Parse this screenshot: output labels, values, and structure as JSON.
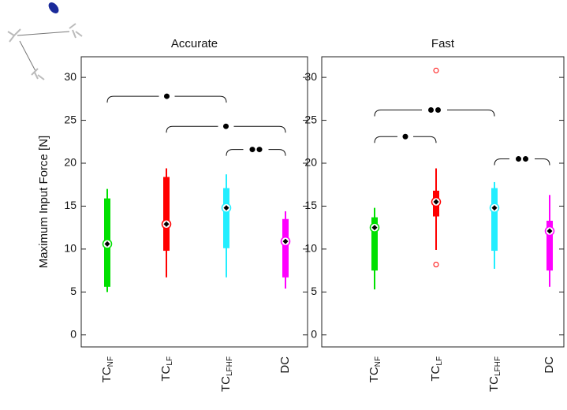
{
  "chart_data": [
    {
      "type": "box",
      "title": "Accurate",
      "ylabel": "Maximum Input Force [N]",
      "categories": [
        {
          "text": "TC",
          "sub": "NF"
        },
        {
          "text": "TC",
          "sub": "LF"
        },
        {
          "text": "TC",
          "sub": "LFHF"
        },
        {
          "text": "DC"
        }
      ],
      "boxes": [
        {
          "color": "#00e000",
          "whisker_low": 5.0,
          "q1": 5.6,
          "median": 10.6,
          "q3": 15.9,
          "whisker_high": 17.0,
          "outliers": []
        },
        {
          "color": "#ff0000",
          "whisker_low": 6.7,
          "q1": 9.8,
          "median": 12.9,
          "q3": 18.4,
          "whisker_high": 19.4,
          "outliers": []
        },
        {
          "color": "#22eeff",
          "whisker_low": 6.7,
          "q1": 10.1,
          "median": 14.8,
          "q3": 17.1,
          "whisker_high": 18.7,
          "outliers": []
        },
        {
          "color": "#ff00ff",
          "whisker_low": 5.4,
          "q1": 6.7,
          "median": 10.9,
          "q3": 13.5,
          "whisker_high": 14.4,
          "outliers": []
        }
      ],
      "brackets": [
        {
          "from": 0,
          "to": 2,
          "y": 27.8,
          "level": 1
        },
        {
          "from": 1,
          "to": 3,
          "y": 24.3,
          "level": 1
        },
        {
          "from": 2,
          "to": 3,
          "y": 21.6,
          "level": 2
        }
      ],
      "ylim": [
        -1.4,
        32.4
      ],
      "yticks": [
        0,
        5,
        10,
        15,
        20,
        25,
        30
      ]
    },
    {
      "type": "box",
      "title": "Fast",
      "categories": [
        {
          "text": "TC",
          "sub": "NF"
        },
        {
          "text": "TC",
          "sub": "LF"
        },
        {
          "text": "TC",
          "sub": "LFHF"
        },
        {
          "text": "DC"
        }
      ],
      "boxes": [
        {
          "color": "#00e000",
          "whisker_low": 5.3,
          "q1": 7.5,
          "median": 12.5,
          "q3": 13.7,
          "whisker_high": 14.8,
          "outliers": []
        },
        {
          "color": "#ff0000",
          "whisker_low": 9.9,
          "q1": 13.8,
          "median": 15.5,
          "q3": 16.8,
          "whisker_high": 19.4,
          "outliers": [
            30.8,
            8.2
          ]
        },
        {
          "color": "#22eeff",
          "whisker_low": 7.7,
          "q1": 9.8,
          "median": 14.8,
          "q3": 17.1,
          "whisker_high": 17.8,
          "outliers": []
        },
        {
          "color": "#ff00ff",
          "whisker_low": 5.6,
          "q1": 7.5,
          "median": 12.1,
          "q3": 13.3,
          "whisker_high": 16.3,
          "outliers": []
        }
      ],
      "brackets": [
        {
          "from": 0,
          "to": 2,
          "y": 26.2,
          "level": 2
        },
        {
          "from": 0,
          "to": 1,
          "y": 23.1,
          "level": 1
        },
        {
          "from": 2,
          "to": 3,
          "y": 20.5,
          "level": 2
        }
      ],
      "ylim": [
        -1.4,
        32.4
      ],
      "yticks": [
        0,
        5,
        10,
        15,
        20,
        25,
        30
      ]
    }
  ]
}
